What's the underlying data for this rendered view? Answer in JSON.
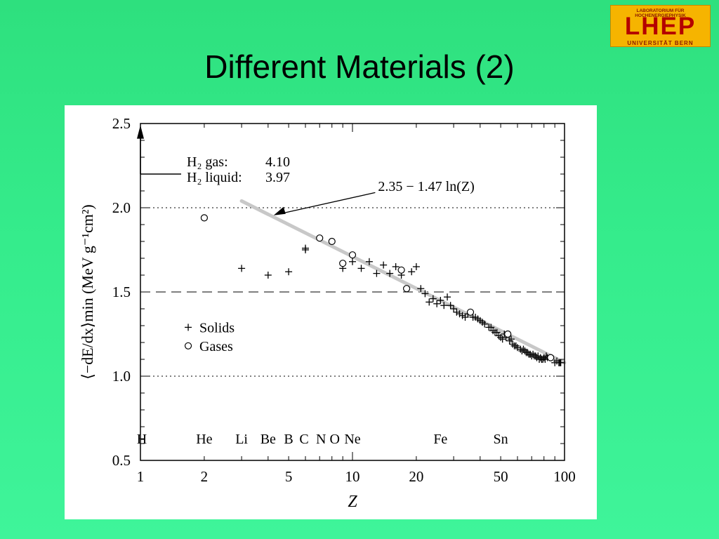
{
  "slide": {
    "title": "Different Materials (2)"
  },
  "logo": {
    "top_text": "LABORATORIUM FÜR HOCHENERGIEPHYSIK",
    "main_text": "LHEP",
    "bottom_text": "UNIVERSITÄT BERN",
    "bg_color": "#f6b400",
    "text_color": "#b40000"
  },
  "chart_data": {
    "type": "scatter",
    "x_scale": "log",
    "xlim": [
      1,
      100
    ],
    "ylim": [
      0.5,
      2.5
    ],
    "xlabel": "Z",
    "ylabel": "⟨−dE/dx⟩min (MeV g⁻¹cm²)",
    "x_ticks": [
      1,
      2,
      5,
      10,
      20,
      50,
      100
    ],
    "y_ticks": [
      0.5,
      1.0,
      1.5,
      2.0,
      2.5
    ],
    "y_tick_labels": [
      "0.5",
      "1.0",
      "1.5",
      "2.0",
      "2.5"
    ],
    "reference_lines": [
      {
        "y": 2.0,
        "style": "dotted"
      },
      {
        "y": 1.5,
        "style": "dashed"
      },
      {
        "y": 1.0,
        "style": "dotted"
      }
    ],
    "fit_line": {
      "label": "2.35 − 1.47 ln(Z)",
      "x_range": [
        3,
        100
      ]
    },
    "h2_note": {
      "gas_label": "H₂ gas:",
      "gas_value": "4.10",
      "liquid_label": "H₂ liquid:",
      "liquid_value": "3.97"
    },
    "legend": {
      "solids": "Solids",
      "gases": "Gases",
      "position": "left-middle"
    },
    "element_labels": [
      {
        "z": 1,
        "label": "H"
      },
      {
        "z": 2,
        "label": "He"
      },
      {
        "z": 3,
        "label": "Li"
      },
      {
        "z": 4,
        "label": "Be"
      },
      {
        "z": 5,
        "label": "B"
      },
      {
        "z": 6,
        "label": "C"
      },
      {
        "z": 7,
        "label": "N"
      },
      {
        "z": 8,
        "label": "O"
      },
      {
        "z": 10,
        "label": "Ne"
      },
      {
        "z": 26,
        "label": "Fe"
      },
      {
        "z": 50,
        "label": "Sn"
      }
    ],
    "series": [
      {
        "name": "Solids",
        "marker": "plus",
        "points": [
          [
            3,
            1.64
          ],
          [
            4,
            1.6
          ],
          [
            5,
            1.62
          ],
          [
            6,
            1.75
          ],
          [
            6,
            1.76
          ],
          [
            9,
            1.64
          ],
          [
            10,
            1.68
          ],
          [
            11,
            1.64
          ],
          [
            12,
            1.68
          ],
          [
            13,
            1.61
          ],
          [
            14,
            1.66
          ],
          [
            15,
            1.61
          ],
          [
            16,
            1.65
          ],
          [
            17,
            1.6
          ],
          [
            19,
            1.62
          ],
          [
            20,
            1.65
          ],
          [
            21,
            1.52
          ],
          [
            22,
            1.49
          ],
          [
            23,
            1.44
          ],
          [
            24,
            1.46
          ],
          [
            25,
            1.43
          ],
          [
            26,
            1.45
          ],
          [
            27,
            1.42
          ],
          [
            28,
            1.47
          ],
          [
            29,
            1.42
          ],
          [
            30,
            1.4
          ],
          [
            31,
            1.38
          ],
          [
            32,
            1.37
          ],
          [
            33,
            1.36
          ],
          [
            34,
            1.35
          ],
          [
            35,
            1.37
          ],
          [
            37,
            1.35
          ],
          [
            38,
            1.35
          ],
          [
            39,
            1.34
          ],
          [
            40,
            1.33
          ],
          [
            41,
            1.32
          ],
          [
            42,
            1.31
          ],
          [
            44,
            1.29
          ],
          [
            45,
            1.29
          ],
          [
            46,
            1.27
          ],
          [
            47,
            1.26
          ],
          [
            48,
            1.26
          ],
          [
            49,
            1.24
          ],
          [
            50,
            1.23
          ],
          [
            51,
            1.22
          ],
          [
            52,
            1.25
          ],
          [
            53,
            1.23
          ],
          [
            55,
            1.21
          ],
          [
            56,
            1.22
          ],
          [
            57,
            1.19
          ],
          [
            58,
            1.18
          ],
          [
            59,
            1.18
          ],
          [
            60,
            1.17
          ],
          [
            62,
            1.16
          ],
          [
            63,
            1.15
          ],
          [
            64,
            1.16
          ],
          [
            65,
            1.15
          ],
          [
            66,
            1.14
          ],
          [
            67,
            1.14
          ],
          [
            68,
            1.13
          ],
          [
            69,
            1.13
          ],
          [
            70,
            1.12
          ],
          [
            71,
            1.13
          ],
          [
            72,
            1.12
          ],
          [
            73,
            1.12
          ],
          [
            74,
            1.11
          ],
          [
            75,
            1.12
          ],
          [
            76,
            1.1
          ],
          [
            77,
            1.11
          ],
          [
            78,
            1.1
          ],
          [
            79,
            1.1
          ],
          [
            80,
            1.11
          ],
          [
            81,
            1.1
          ],
          [
            82,
            1.12
          ],
          [
            83,
            1.11
          ],
          [
            90,
            1.08
          ],
          [
            92,
            1.09
          ],
          [
            94,
            1.08
          ],
          [
            95,
            1.08
          ],
          [
            96,
            1.08
          ]
        ]
      },
      {
        "name": "Gases",
        "marker": "circle",
        "points": [
          [
            2,
            1.94
          ],
          [
            7,
            1.82
          ],
          [
            8,
            1.8
          ],
          [
            9,
            1.67
          ],
          [
            10,
            1.72
          ],
          [
            17,
            1.63
          ],
          [
            18,
            1.52
          ],
          [
            36,
            1.38
          ],
          [
            54,
            1.25
          ],
          [
            86,
            1.11
          ]
        ]
      }
    ]
  }
}
